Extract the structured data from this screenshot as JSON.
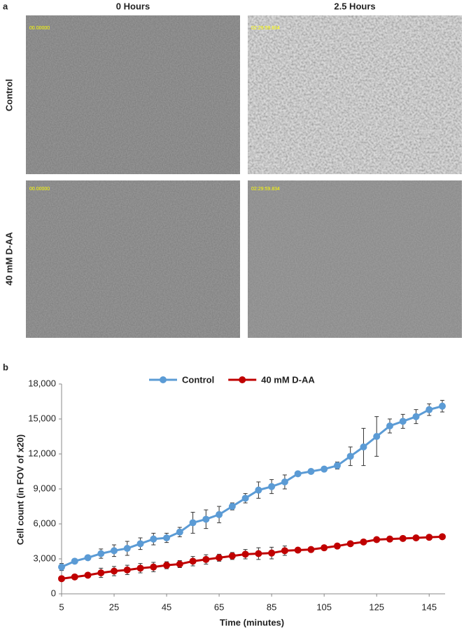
{
  "panel_a": {
    "label": "a",
    "columns": [
      "0 Hours",
      "2.5 Hours"
    ],
    "rows": [
      "Control",
      "40 mM D-AA"
    ],
    "timestamps": [
      [
        "00.00000",
        "02:29:59.834"
      ],
      [
        "00.00000",
        "02:29:59.834"
      ]
    ]
  },
  "chart_data": {
    "type": "line",
    "panel_label": "b",
    "x_label": "Time (minutes)",
    "y_label": "Cell count (in FOV of x20)",
    "x": [
      5,
      10,
      15,
      20,
      25,
      30,
      35,
      40,
      45,
      50,
      55,
      60,
      65,
      70,
      75,
      80,
      85,
      90,
      95,
      100,
      105,
      110,
      115,
      120,
      125,
      130,
      135,
      140,
      145,
      150
    ],
    "series": [
      {
        "name": "Control",
        "color": "#5b9bd5",
        "values": [
          2300,
          2800,
          3100,
          3450,
          3700,
          3900,
          4300,
          4700,
          4800,
          5300,
          6100,
          6400,
          6800,
          7500,
          8200,
          8900,
          9200,
          9600,
          10300,
          10500,
          10700,
          11000,
          11800,
          12600,
          13500,
          14400,
          14800,
          15200,
          15800,
          16100
        ],
        "errors": [
          300,
          200,
          200,
          400,
          500,
          600,
          500,
          500,
          400,
          400,
          900,
          800,
          700,
          300,
          400,
          700,
          600,
          600,
          200,
          200,
          200,
          300,
          800,
          1600,
          1700,
          600,
          600,
          600,
          500,
          500
        ]
      },
      {
        "name": "40 mM D-AA",
        "color": "#c00000",
        "values": [
          1300,
          1450,
          1600,
          1800,
          1950,
          2050,
          2200,
          2300,
          2450,
          2550,
          2800,
          2950,
          3100,
          3250,
          3400,
          3450,
          3500,
          3700,
          3750,
          3800,
          3950,
          4100,
          4300,
          4450,
          4650,
          4700,
          4750,
          4800,
          4850,
          4900
        ],
        "errors": [
          200,
          200,
          200,
          400,
          400,
          400,
          400,
          400,
          300,
          300,
          400,
          400,
          300,
          300,
          400,
          500,
          500,
          400,
          200,
          200,
          200,
          200,
          200,
          200,
          200,
          200,
          200,
          200,
          200,
          200
        ]
      }
    ],
    "xlim": [
      5,
      150
    ],
    "xticks": [
      5,
      25,
      45,
      65,
      85,
      105,
      125,
      145
    ],
    "ylim": [
      0,
      18000
    ],
    "yticks": [
      0,
      {
        "value": 3000,
        "label": "3,000"
      },
      {
        "value": 6000,
        "label": "6,000"
      },
      {
        "value": 9000,
        "label": "9,000"
      },
      {
        "value": 12000,
        "label": "12,000"
      },
      {
        "value": 15000,
        "label": "15,000"
      },
      {
        "value": 18000,
        "label": "18,000"
      }
    ],
    "legend": "top",
    "grid": false
  }
}
